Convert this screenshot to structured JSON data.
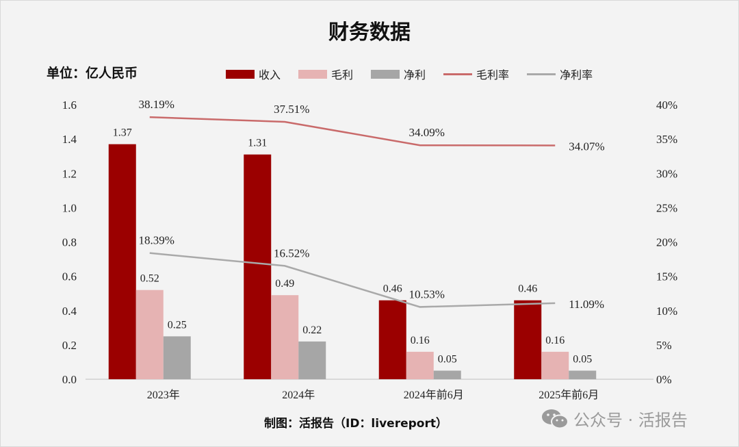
{
  "title": "财务数据",
  "unit_label": "单位：亿人民币",
  "credit": "制图：活报告（ID：livereport）",
  "watermark": "公众号 · 活报告",
  "colors": {
    "revenue": "#9b0000",
    "gross": "#e6b3b3",
    "net": "#a6a6a6",
    "gross_margin": "#c96a6a",
    "net_margin": "#a9a9a9",
    "background": "#f3f3f3"
  },
  "chart_data": {
    "type": "bar+line",
    "title": "财务数据",
    "categories": [
      "2023年",
      "2024年",
      "2024年前6月",
      "2025年前6月"
    ],
    "y_left": {
      "range": [
        0,
        1.6
      ],
      "ticks": [
        "0.0",
        "0.2",
        "0.4",
        "0.6",
        "0.8",
        "1.0",
        "1.2",
        "1.4",
        "1.6"
      ]
    },
    "y_right": {
      "range": [
        0,
        40
      ],
      "ticks": [
        "0%",
        "5%",
        "10%",
        "15%",
        "20%",
        "25%",
        "30%",
        "35%",
        "40%"
      ]
    },
    "grid": false,
    "legend": "top",
    "series": [
      {
        "name": "收入",
        "type": "bar",
        "axis": "left",
        "values": [
          1.37,
          1.31,
          0.46,
          0.46
        ],
        "labels": [
          "1.37",
          "1.31",
          "0.46",
          "0.46"
        ]
      },
      {
        "name": "毛利",
        "type": "bar",
        "axis": "left",
        "values": [
          0.52,
          0.49,
          0.16,
          0.16
        ],
        "labels": [
          "0.52",
          "0.49",
          "0.16",
          "0.16"
        ]
      },
      {
        "name": "净利",
        "type": "bar",
        "axis": "left",
        "values": [
          0.25,
          0.22,
          0.05,
          0.05
        ],
        "labels": [
          "0.25",
          "0.22",
          "0.05",
          "0.05"
        ]
      },
      {
        "name": "毛利率",
        "type": "line",
        "axis": "right",
        "values": [
          38.19,
          37.51,
          34.09,
          34.07
        ],
        "labels": [
          "38.19%",
          "37.51%",
          "34.09%",
          "34.07%"
        ]
      },
      {
        "name": "净利率",
        "type": "line",
        "axis": "right",
        "values": [
          18.39,
          16.52,
          10.53,
          11.09
        ],
        "labels": [
          "18.39%",
          "16.52%",
          "10.53%",
          "11.09%"
        ]
      }
    ]
  }
}
